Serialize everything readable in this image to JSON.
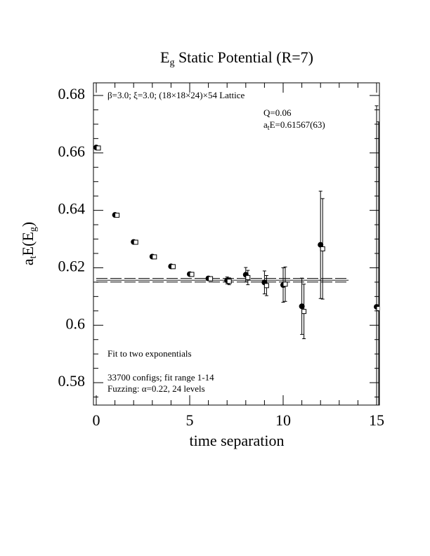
{
  "chart_data": {
    "type": "scatter",
    "title": {
      "main": "E",
      "sub": "g",
      "rest": " Static Potential (R=7)"
    },
    "x_label": "time separation",
    "y_label": {
      "a": "a",
      "t": "t",
      "mid": "E(E",
      "sub": "g",
      "end": ")"
    },
    "annotations": {
      "lattice": "β=3.0; ξ=3.0; (18×18×24)×54 Lattice",
      "q": "Q=0.06",
      "energy": {
        "a": "a",
        "t": "t",
        "rest": "E=0.61567(63)"
      },
      "fit": "Fit to two exponentials",
      "configs": "33700 configs; fit range 1-14",
      "fuzzing": "Fuzzing: α=0.22, 24 levels"
    },
    "xlim": [
      -0.15,
      15.15
    ],
    "ylim": [
      0.5722,
      0.6844
    ],
    "xticks": [
      0,
      5,
      10,
      15
    ],
    "yticks": [
      0.58,
      0.6,
      0.62,
      0.64,
      0.66,
      0.68
    ],
    "xminor": [
      1,
      2,
      3,
      4,
      6,
      7,
      8,
      9,
      11,
      12,
      13,
      14
    ],
    "yminor": [
      0.575,
      0.585,
      0.59,
      0.595,
      0.605,
      0.61,
      0.615,
      0.625,
      0.63,
      0.635,
      0.645,
      0.65,
      0.655,
      0.665,
      0.67,
      0.675
    ],
    "series": [
      {
        "marker": "circle",
        "color": "#000000",
        "x": [
          0,
          1,
          2,
          3,
          4,
          5,
          6,
          7,
          8,
          9,
          10,
          11,
          12,
          15
        ],
        "values": [
          0.6619,
          0.6384,
          0.629,
          0.6239,
          0.6205,
          0.6178,
          0.6163,
          0.6156,
          0.6176,
          0.6149,
          0.614,
          0.6066,
          0.628,
          0.6064
        ],
        "errors": [
          0.0003,
          0.0003,
          0.0003,
          0.0003,
          0.0004,
          0.0005,
          0.0007,
          0.0012,
          0.0025,
          0.004,
          0.006,
          0.0098,
          0.0187,
          0.07
        ]
      },
      {
        "marker": "square",
        "color": "#000000",
        "x": [
          0,
          1,
          2,
          3,
          4,
          5,
          6,
          7,
          8,
          9,
          10,
          11,
          12,
          15
        ],
        "values": [
          0.6617,
          0.6383,
          0.6289,
          0.6238,
          0.6204,
          0.6177,
          0.6162,
          0.6153,
          0.6166,
          0.6138,
          0.6143,
          0.6048,
          0.6266,
          0.6058
        ],
        "errors": [
          0.0003,
          0.0003,
          0.0003,
          0.0003,
          0.0004,
          0.0005,
          0.0007,
          0.0012,
          0.0025,
          0.0035,
          0.006,
          0.0095,
          0.0175,
          0.065
        ]
      }
    ],
    "fit": {
      "value": 0.61567,
      "error": 0.00063,
      "x_range": [
        0,
        13.5
      ]
    }
  }
}
